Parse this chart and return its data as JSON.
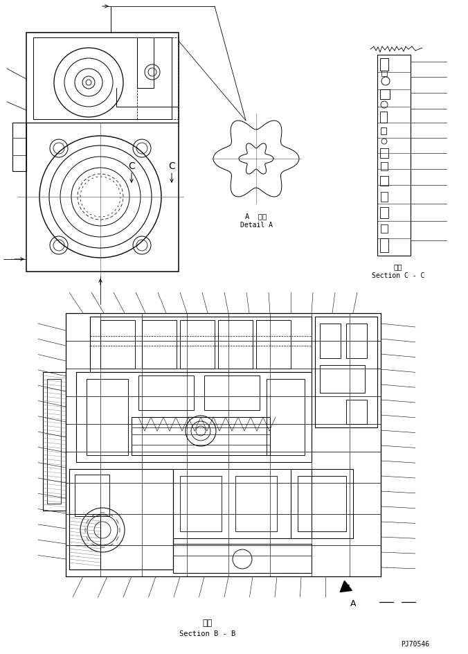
{
  "bg_color": "#ffffff",
  "line_color": "#000000",
  "fig_width": 6.76,
  "fig_height": 9.45,
  "bottom_label_jp": "断面",
  "bottom_label_en": "Section B - B",
  "code": "PJ70546",
  "detail_a_label_jp": "A  詳細",
  "detail_a_label_en": "Detail A",
  "section_cc_label_jp": "断面",
  "section_cc_label_en": "Section C - C",
  "arrow_a_label": "A"
}
